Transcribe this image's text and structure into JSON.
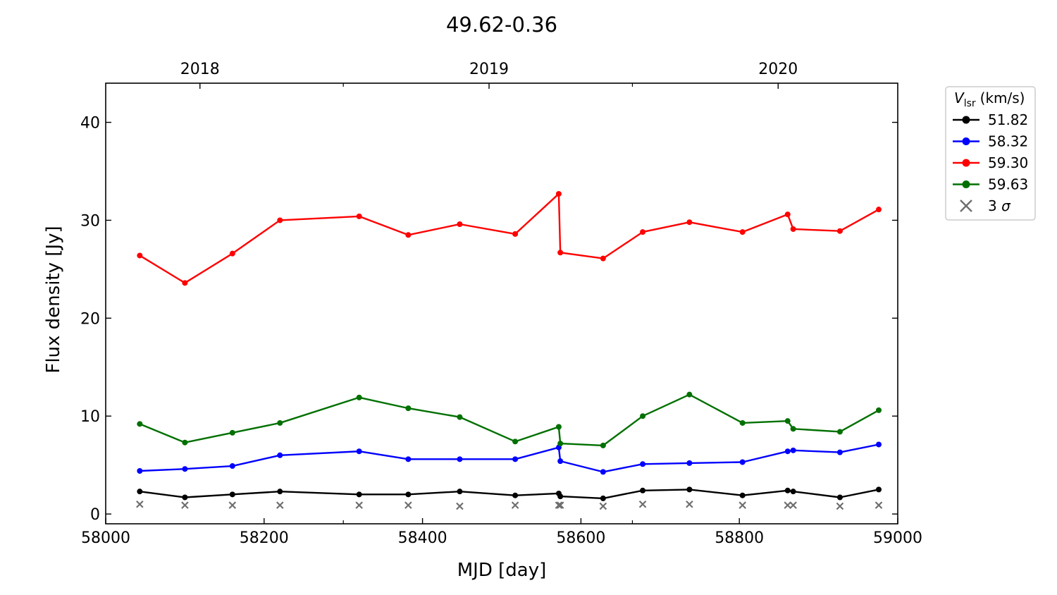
{
  "chart_data": {
    "type": "line",
    "title": "49.62-0.36",
    "xlabel": "MJD [day]",
    "ylabel": "Flux density [Jy]",
    "xlim": [
      58000,
      59000
    ],
    "ylim": [
      -1,
      44
    ],
    "xticks": [
      58000,
      58200,
      58400,
      58600,
      58800,
      59000
    ],
    "yticks": [
      0,
      10,
      20,
      30,
      40
    ],
    "top_axis": {
      "ticks": [
        {
          "label": "2018",
          "mjd": 58119
        },
        {
          "label": "2019",
          "mjd": 58484
        },
        {
          "label": "2020",
          "mjd": 58849
        }
      ],
      "minor_mjd": [
        58300,
        58665
      ]
    },
    "legend": {
      "title_main": "V",
      "title_sub": "lsr",
      "title_unit": "(km/s)",
      "position": "upper-right-outside"
    },
    "x": [
      58043,
      58100,
      58160,
      58220,
      58320,
      58382,
      58447,
      58517,
      58572,
      58574,
      58628,
      58678,
      58737,
      58804,
      58861,
      58868,
      58927,
      58976
    ],
    "series": [
      {
        "name": "51.82",
        "color": "#000000",
        "values": [
          2.3,
          1.7,
          2.0,
          2.3,
          2.0,
          2.0,
          2.3,
          1.9,
          2.1,
          1.8,
          1.6,
          2.4,
          2.5,
          1.9,
          2.4,
          2.3,
          1.7,
          2.5
        ]
      },
      {
        "name": "58.32",
        "color": "#0000ff",
        "values": [
          4.4,
          4.6,
          4.9,
          6.0,
          6.4,
          5.6,
          5.6,
          5.6,
          6.8,
          5.4,
          4.3,
          5.1,
          5.2,
          5.3,
          6.4,
          6.5,
          6.3,
          7.1
        ]
      },
      {
        "name": "59.30",
        "color": "#ff0000",
        "values": [
          26.4,
          23.6,
          26.6,
          30.0,
          30.4,
          28.5,
          29.6,
          28.6,
          32.7,
          26.7,
          26.1,
          28.8,
          29.8,
          28.8,
          30.6,
          29.1,
          28.9,
          31.1
        ]
      },
      {
        "name": "59.63",
        "color": "#007000",
        "values": [
          9.2,
          7.3,
          8.3,
          9.3,
          11.9,
          10.8,
          9.9,
          7.4,
          8.9,
          7.2,
          7.0,
          10.0,
          12.2,
          9.3,
          9.5,
          8.7,
          8.4,
          10.6
        ]
      }
    ],
    "sigma3": {
      "name": "3",
      "name_symbol": "σ",
      "color": "#6e6e6e",
      "x": [
        58043,
        58100,
        58160,
        58220,
        58320,
        58382,
        58447,
        58517,
        58572,
        58574,
        58628,
        58678,
        58737,
        58804,
        58861,
        58868,
        58927,
        58976
      ],
      "values": [
        1.0,
        0.9,
        0.9,
        0.9,
        0.9,
        0.9,
        0.8,
        0.9,
        0.9,
        0.9,
        0.8,
        1.0,
        1.0,
        0.9,
        0.9,
        0.9,
        0.8,
        0.9
      ]
    }
  }
}
